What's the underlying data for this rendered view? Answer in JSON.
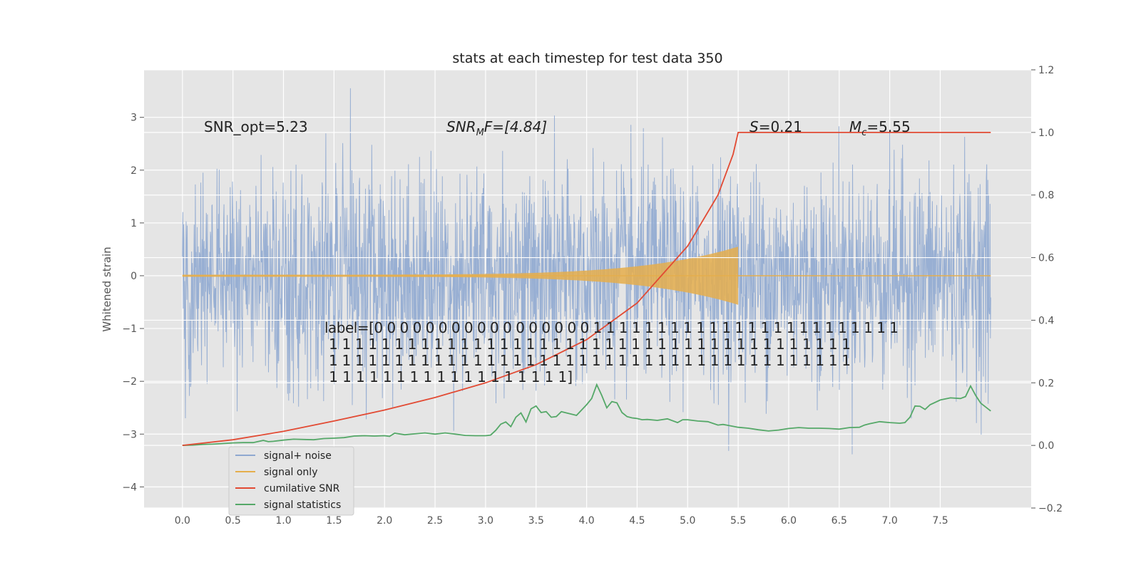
{
  "chart_data": {
    "type": "line",
    "title": "stats at each timestep for test data 350",
    "ylabel": "Whitened strain",
    "xlabel": "",
    "xlim": [
      -0.38,
      8.4
    ],
    "ylim": [
      -4.4,
      3.9
    ],
    "y2lim": [
      -0.2,
      1.2
    ],
    "grid": true,
    "legend_position": "lower-left",
    "x_ticks": [
      "0.0",
      "0.5",
      "1.0",
      "1.5",
      "2.0",
      "2.5",
      "3.0",
      "3.5",
      "4.0",
      "4.5",
      "5.0",
      "5.5",
      "6.0",
      "6.5",
      "7.0",
      "7.5"
    ],
    "y_ticks": [
      "3",
      "2",
      "1",
      "0",
      "−1",
      "−2",
      "−3",
      "−4"
    ],
    "y2_ticks": [
      "1.2",
      "1.0",
      "0.8",
      "0.6",
      "0.4",
      "0.2",
      "0.0",
      "−0.2"
    ],
    "annotations": {
      "snr_opt": "SNR_opt=5.23",
      "snr_mf_main": "SNR",
      "snr_mf_sub": "M",
      "snr_mf_rest": "F=[4.84]",
      "s_symbol": "S",
      "s_rest": "=0.21",
      "mc_main": "M",
      "mc_sub": "c",
      "mc_rest": "=5.55",
      "label_lines": [
        "label=[0 0 0 0 0 0 0 0 0 0 0 0 0 0 0 0 0 1 1 1 1 1 1 1 1 1 1 1 1 1 1 1 1 1 1 1 1 1 1 1 1",
        " 1 1 1 1 1 1 1 1 1 1 1 1 1 1 1 1 1 1 1 1 1 1 1 1 1 1 1 1 1 1 1 1 1 1 1 1 1 1 1 1",
        " 1 1 1 1 1 1 1 1 1 1 1 1 1 1 1 1 1 1 1 1 1 1 1 1 1 1 1 1 1 1 1 1 1 1 1 1 1 1 1 1",
        " 1 1 1 1 1 1 1 1 1 1 1 1 1 1 1 1 1 1]"
      ]
    },
    "series": [
      {
        "name": "signal+ noise",
        "axis": "left",
        "color": "#8fa8d0",
        "x_range": [
          0.0,
          8.0
        ],
        "noise_std": 1.0,
        "y_min": -3.97,
        "y_max": 3.55
      },
      {
        "name": "signal only",
        "axis": "left",
        "color": "#e5ae4c",
        "x_range": [
          0.0,
          5.5
        ],
        "amplitude_start": 0.02,
        "amplitude_end": 0.55,
        "after_merger": 0.0
      },
      {
        "name": "cumilative SNR",
        "axis": "right",
        "color": "#e24a33",
        "x": [
          0.0,
          0.5,
          1.0,
          1.5,
          2.0,
          2.5,
          3.0,
          3.5,
          4.0,
          4.5,
          5.0,
          5.3,
          5.45,
          5.5,
          6.0,
          7.0,
          8.0
        ],
        "y": [
          0.0,
          0.018,
          0.045,
          0.078,
          0.113,
          0.153,
          0.2,
          0.258,
          0.338,
          0.455,
          0.637,
          0.8,
          0.93,
          1.0,
          1.0,
          1.0,
          1.0
        ]
      },
      {
        "name": "signal statistics",
        "axis": "right",
        "color": "#55a868",
        "x": [
          0.0,
          0.1,
          0.2,
          0.3,
          0.4,
          0.5,
          0.6,
          0.7,
          0.8,
          0.85,
          0.9,
          1.0,
          1.1,
          1.2,
          1.3,
          1.4,
          1.5,
          1.6,
          1.7,
          1.8,
          1.9,
          2.0,
          2.05,
          2.1,
          2.2,
          2.3,
          2.4,
          2.5,
          2.6,
          2.7,
          2.8,
          2.9,
          3.0,
          3.05,
          3.1,
          3.15,
          3.2,
          3.25,
          3.3,
          3.35,
          3.4,
          3.45,
          3.5,
          3.55,
          3.6,
          3.65,
          3.7,
          3.75,
          3.8,
          3.9,
          4.0,
          4.05,
          4.1,
          4.15,
          4.2,
          4.25,
          4.3,
          4.35,
          4.4,
          4.45,
          4.5,
          4.55,
          4.6,
          4.7,
          4.8,
          4.9,
          4.95,
          5.0,
          5.1,
          5.2,
          5.3,
          5.35,
          5.4,
          5.5,
          5.6,
          5.7,
          5.8,
          5.9,
          6.0,
          6.1,
          6.2,
          6.3,
          6.4,
          6.5,
          6.6,
          6.7,
          6.75,
          6.8,
          6.9,
          7.0,
          7.1,
          7.15,
          7.2,
          7.25,
          7.3,
          7.35,
          7.4,
          7.5,
          7.6,
          7.7,
          7.75,
          7.8,
          7.85,
          7.9,
          8.0
        ],
        "y": [
          0.0,
          0.001,
          0.003,
          0.004,
          0.006,
          0.008,
          0.009,
          0.009,
          0.016,
          0.012,
          0.013,
          0.017,
          0.02,
          0.019,
          0.018,
          0.022,
          0.023,
          0.025,
          0.03,
          0.031,
          0.03,
          0.031,
          0.029,
          0.039,
          0.034,
          0.037,
          0.04,
          0.036,
          0.04,
          0.036,
          0.032,
          0.031,
          0.031,
          0.033,
          0.048,
          0.068,
          0.075,
          0.06,
          0.09,
          0.104,
          0.075,
          0.117,
          0.126,
          0.105,
          0.108,
          0.09,
          0.092,
          0.108,
          0.104,
          0.096,
          0.13,
          0.15,
          0.194,
          0.16,
          0.12,
          0.14,
          0.136,
          0.105,
          0.092,
          0.088,
          0.086,
          0.082,
          0.083,
          0.08,
          0.085,
          0.073,
          0.082,
          0.082,
          0.078,
          0.076,
          0.065,
          0.067,
          0.064,
          0.058,
          0.055,
          0.05,
          0.046,
          0.049,
          0.054,
          0.057,
          0.055,
          0.055,
          0.054,
          0.052,
          0.057,
          0.058,
          0.065,
          0.069,
          0.076,
          0.073,
          0.071,
          0.073,
          0.09,
          0.126,
          0.125,
          0.115,
          0.13,
          0.145,
          0.152,
          0.15,
          0.156,
          0.19,
          0.16,
          0.135,
          0.11
        ]
      }
    ]
  }
}
